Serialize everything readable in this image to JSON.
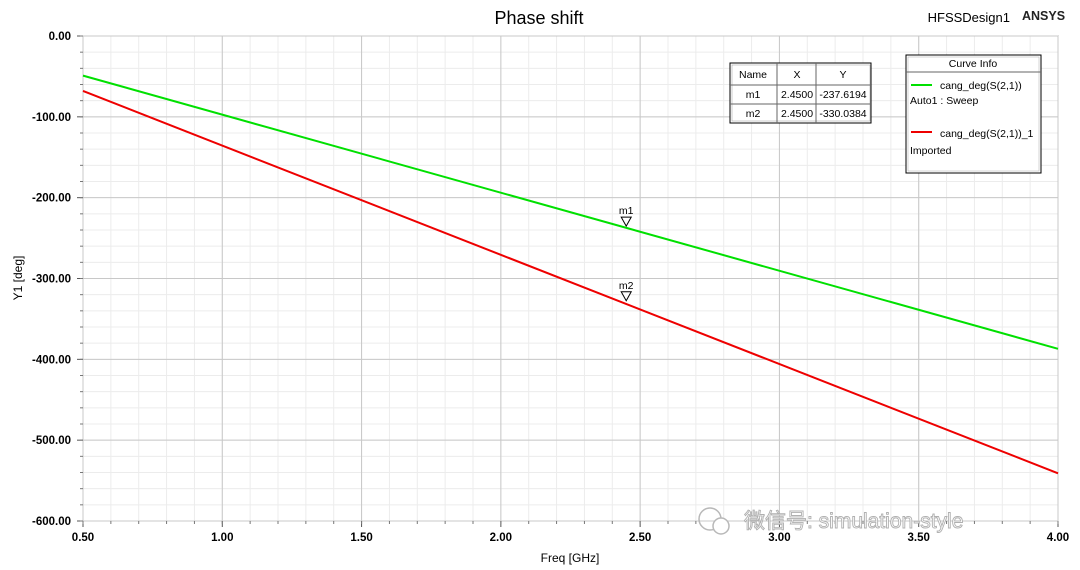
{
  "header": {
    "title": "Phase shift",
    "design_name": "HFSSDesign1",
    "brand": "ANSYS"
  },
  "watermark": "微信号: simulation-style",
  "marker_table": {
    "headers": [
      "Name",
      "X",
      "Y"
    ],
    "rows": [
      [
        "m1",
        "2.4500",
        "-237.6194"
      ],
      [
        "m2",
        "2.4500",
        "-330.0384"
      ]
    ]
  },
  "curve_info": {
    "title": "Curve Info",
    "entries": [
      {
        "name": "cang_deg(S(2,1))",
        "sub": "Auto1 : Sweep",
        "color": "#00e000"
      },
      {
        "name": "cang_deg(S(2,1))_1",
        "sub": "Imported",
        "color": "#ee0000"
      }
    ]
  },
  "chart_data": {
    "type": "line",
    "xlabel": "Freq [GHz]",
    "ylabel": "Y1 [deg]",
    "xlim": [
      0.5,
      4.0
    ],
    "ylim": [
      -600,
      0
    ],
    "xticks": [
      0.5,
      1.0,
      1.5,
      2.0,
      2.5,
      3.0,
      3.5,
      4.0
    ],
    "xtick_labels": [
      "0.50",
      "1.00",
      "1.50",
      "2.00",
      "2.50",
      "3.00",
      "3.50",
      "4.00"
    ],
    "yticks": [
      0,
      -100,
      -200,
      -300,
      -400,
      -500,
      -600
    ],
    "ytick_labels": [
      "0.00",
      "-100.00",
      "-200.00",
      "-300.00",
      "-400.00",
      "-500.00",
      "-600.00"
    ],
    "grid": true,
    "series": [
      {
        "name": "cang_deg(S(2,1))",
        "color": "#00e000",
        "x": [
          0.5,
          4.0
        ],
        "y": [
          -49,
          -387
        ]
      },
      {
        "name": "cang_deg(S(2,1))_1",
        "color": "#ee0000",
        "x": [
          0.5,
          4.0
        ],
        "y": [
          -68,
          -541
        ]
      }
    ],
    "markers": [
      {
        "label": "m1",
        "x": 2.45,
        "y": -237.6194
      },
      {
        "label": "m2",
        "x": 2.45,
        "y": -330.0384
      }
    ]
  }
}
